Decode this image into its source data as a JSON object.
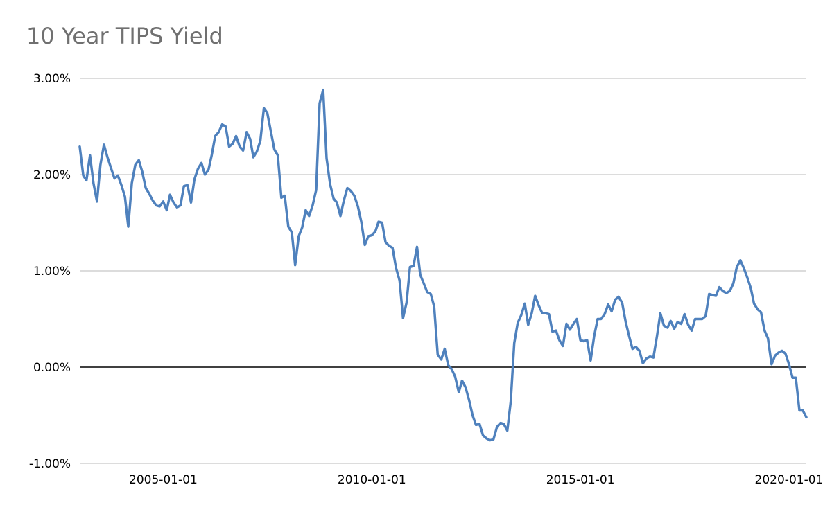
{
  "chart_data": {
    "type": "line",
    "title": "10 Year TIPS Yield",
    "xlabel": "",
    "ylabel": "",
    "ylim": [
      -1.0,
      3.0
    ],
    "xlim": [
      "2003-01-01",
      "2020-06-01"
    ],
    "y_ticks": [
      {
        "value": 3.0,
        "label": "3.00%"
      },
      {
        "value": 2.0,
        "label": "2.00%"
      },
      {
        "value": 1.0,
        "label": "1.00%"
      },
      {
        "value": 0.0,
        "label": "0.00%"
      },
      {
        "value": -1.0,
        "label": "-1.00%"
      }
    ],
    "x_ticks": [
      "2005-01-01",
      "2010-01-01",
      "2015-01-01",
      "2020-01-01"
    ],
    "grid": "horizontal",
    "legend": "none",
    "line_color": "#4F81BD",
    "series": [
      {
        "x": [
          "2003-01-01",
          "2003-02-01",
          "2003-03-01",
          "2003-04-01",
          "2003-05-01",
          "2003-06-01",
          "2003-07-01",
          "2003-08-01",
          "2003-09-01",
          "2003-10-01",
          "2003-11-01",
          "2003-12-01",
          "2004-01-01",
          "2004-02-01",
          "2004-03-01",
          "2004-04-01",
          "2004-05-01",
          "2004-06-01",
          "2004-07-01",
          "2004-08-01",
          "2004-09-01",
          "2004-10-01",
          "2004-11-01",
          "2004-12-01",
          "2005-01-01",
          "2005-02-01",
          "2005-03-01",
          "2005-04-01",
          "2005-05-01",
          "2005-06-01",
          "2005-07-01",
          "2005-08-01",
          "2005-09-01",
          "2005-10-01",
          "2005-11-01",
          "2005-12-01",
          "2006-01-01",
          "2006-02-01",
          "2006-03-01",
          "2006-04-01",
          "2006-05-01",
          "2006-06-01",
          "2006-07-01",
          "2006-08-01",
          "2006-09-01",
          "2006-10-01",
          "2006-11-01",
          "2006-12-01",
          "2007-01-01",
          "2007-02-01",
          "2007-03-01",
          "2007-04-01",
          "2007-05-01",
          "2007-06-01",
          "2007-07-01",
          "2007-08-01",
          "2007-09-01",
          "2007-10-01",
          "2007-11-01",
          "2007-12-01",
          "2008-01-01",
          "2008-02-01",
          "2008-03-01",
          "2008-04-01",
          "2008-05-01",
          "2008-06-01",
          "2008-07-01",
          "2008-08-01",
          "2008-09-01",
          "2008-10-01",
          "2008-11-01",
          "2008-12-01",
          "2009-01-01",
          "2009-02-01",
          "2009-03-01",
          "2009-04-01",
          "2009-05-01",
          "2009-06-01",
          "2009-07-01",
          "2009-08-01",
          "2009-09-01",
          "2009-10-01",
          "2009-11-01",
          "2009-12-01",
          "2010-01-01",
          "2010-02-01",
          "2010-03-01",
          "2010-04-01",
          "2010-05-01",
          "2010-06-01",
          "2010-07-01",
          "2010-08-01",
          "2010-09-01",
          "2010-10-01",
          "2010-11-01",
          "2010-12-01",
          "2011-01-01",
          "2011-02-01",
          "2011-03-01",
          "2011-04-01",
          "2011-05-01",
          "2011-06-01",
          "2011-07-01",
          "2011-08-01",
          "2011-09-01",
          "2011-10-01",
          "2011-11-01",
          "2011-12-01",
          "2012-01-01",
          "2012-02-01",
          "2012-03-01",
          "2012-04-01",
          "2012-05-01",
          "2012-06-01",
          "2012-07-01",
          "2012-08-01",
          "2012-09-01",
          "2012-10-01",
          "2012-11-01",
          "2012-12-01",
          "2013-01-01",
          "2013-02-01",
          "2013-03-01",
          "2013-04-01",
          "2013-05-01",
          "2013-06-01",
          "2013-07-01",
          "2013-08-01",
          "2013-09-01",
          "2013-10-01",
          "2013-11-01",
          "2013-12-01",
          "2014-01-01",
          "2014-02-01",
          "2014-03-01",
          "2014-04-01",
          "2014-05-01",
          "2014-06-01",
          "2014-07-01",
          "2014-08-01",
          "2014-09-01",
          "2014-10-01",
          "2014-11-01",
          "2014-12-01",
          "2015-01-01",
          "2015-02-01",
          "2015-03-01",
          "2015-04-01",
          "2015-05-01",
          "2015-06-01",
          "2015-07-01",
          "2015-08-01",
          "2015-09-01",
          "2015-10-01",
          "2015-11-01",
          "2015-12-01",
          "2016-01-01",
          "2016-02-01",
          "2016-03-01",
          "2016-04-01",
          "2016-05-01",
          "2016-06-01",
          "2016-07-01",
          "2016-08-01",
          "2016-09-01",
          "2016-10-01",
          "2016-11-01",
          "2016-12-01",
          "2017-01-01",
          "2017-02-01",
          "2017-03-01",
          "2017-04-01",
          "2017-05-01",
          "2017-06-01",
          "2017-07-01",
          "2017-08-01",
          "2017-09-01",
          "2017-10-01",
          "2017-11-01",
          "2017-12-01",
          "2018-01-01",
          "2018-02-01",
          "2018-03-01",
          "2018-04-01",
          "2018-05-01",
          "2018-06-01",
          "2018-07-01",
          "2018-08-01",
          "2018-09-01",
          "2018-10-01",
          "2018-11-01",
          "2018-12-01",
          "2019-01-01",
          "2019-02-01",
          "2019-03-01",
          "2019-04-01",
          "2019-05-01",
          "2019-06-01",
          "2019-07-01",
          "2019-08-01",
          "2019-09-01",
          "2019-10-01",
          "2019-11-01",
          "2019-12-01",
          "2020-01-01",
          "2020-02-01",
          "2020-03-01",
          "2020-04-01",
          "2020-05-01",
          "2020-06-01"
        ],
        "values": [
          2.29,
          1.99,
          1.94,
          2.2,
          1.91,
          1.72,
          2.1,
          2.31,
          2.18,
          2.07,
          1.96,
          1.99,
          1.89,
          1.77,
          1.46,
          1.91,
          2.1,
          2.15,
          2.03,
          1.86,
          1.8,
          1.73,
          1.68,
          1.67,
          1.72,
          1.63,
          1.79,
          1.71,
          1.66,
          1.68,
          1.88,
          1.89,
          1.71,
          1.95,
          2.06,
          2.12,
          2.0,
          2.05,
          2.2,
          2.4,
          2.44,
          2.52,
          2.5,
          2.29,
          2.32,
          2.4,
          2.29,
          2.25,
          2.44,
          2.37,
          2.18,
          2.24,
          2.35,
          2.69,
          2.64,
          2.45,
          2.26,
          2.2,
          1.76,
          1.78,
          1.46,
          1.4,
          1.06,
          1.36,
          1.45,
          1.63,
          1.57,
          1.68,
          1.84,
          2.74,
          2.88,
          2.17,
          1.9,
          1.75,
          1.71,
          1.57,
          1.73,
          1.86,
          1.83,
          1.78,
          1.67,
          1.51,
          1.27,
          1.36,
          1.37,
          1.41,
          1.51,
          1.5,
          1.3,
          1.26,
          1.24,
          1.03,
          0.9,
          0.51,
          0.67,
          1.04,
          1.05,
          1.25,
          0.96,
          0.87,
          0.78,
          0.76,
          0.63,
          0.13,
          0.08,
          0.19,
          0.02,
          -0.02,
          -0.1,
          -0.26,
          -0.14,
          -0.21,
          -0.34,
          -0.5,
          -0.6,
          -0.59,
          -0.71,
          -0.74,
          -0.76,
          -0.75,
          -0.62,
          -0.58,
          -0.59,
          -0.66,
          -0.36,
          0.25,
          0.46,
          0.54,
          0.66,
          0.44,
          0.56,
          0.74,
          0.64,
          0.56,
          0.56,
          0.55,
          0.37,
          0.38,
          0.28,
          0.22,
          0.45,
          0.39,
          0.45,
          0.5,
          0.28,
          0.27,
          0.28,
          0.07,
          0.32,
          0.5,
          0.5,
          0.55,
          0.65,
          0.58,
          0.7,
          0.73,
          0.67,
          0.47,
          0.33,
          0.19,
          0.21,
          0.17,
          0.04,
          0.09,
          0.11,
          0.1,
          0.32,
          0.56,
          0.43,
          0.41,
          0.48,
          0.4,
          0.47,
          0.45,
          0.55,
          0.44,
          0.38,
          0.5,
          0.5,
          0.5,
          0.53,
          0.76,
          0.75,
          0.74,
          0.83,
          0.79,
          0.77,
          0.79,
          0.87,
          1.04,
          1.11,
          1.03,
          0.93,
          0.82,
          0.66,
          0.6,
          0.57,
          0.38,
          0.3,
          0.03,
          0.12,
          0.15,
          0.17,
          0.14,
          0.03,
          -0.11,
          -0.11,
          -0.45,
          -0.45,
          -0.52
        ]
      }
    ]
  }
}
